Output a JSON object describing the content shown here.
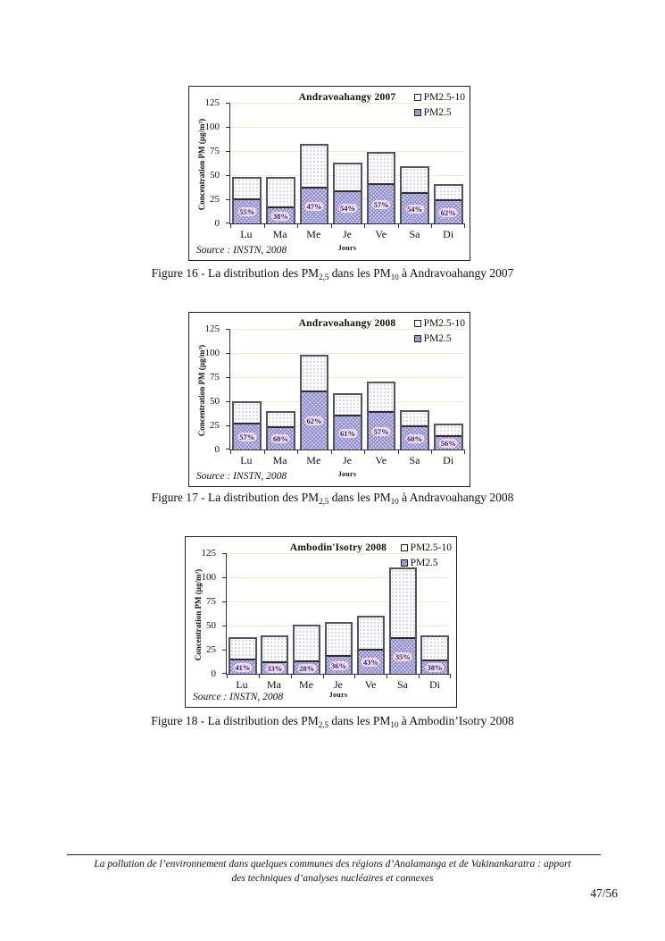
{
  "page": {
    "footer_line1": "La pollution de l’environnement dans quelques communes des régions d’Analamanga et de Vakinankaratra : apport",
    "footer_line2": "des techniques d’analyses nucléaires et connexes",
    "page_number": "47/56"
  },
  "colors": {
    "pm25_fill": "#c7c6e9",
    "pm25_10_fill": "#ffffff",
    "bar_outline": "#54545c",
    "gridline": "#eeeecf",
    "percent_text": "#2d2d6b",
    "percent_halo": "#f2d9ee"
  },
  "chart_data": [
    {
      "type": "bar",
      "stacked": true,
      "title": "Andravoahangy 2007",
      "categories": [
        "Lu",
        "Ma",
        "Me",
        "Je",
        "Ve",
        "Sa",
        "Di"
      ],
      "series": [
        {
          "name": "PM2.5",
          "values": [
            26,
            18,
            38,
            34,
            42,
            32,
            25
          ]
        },
        {
          "name": "PM2.5-10",
          "values": [
            22,
            30,
            44,
            29,
            32,
            27,
            16
          ]
        }
      ],
      "totals": [
        48,
        48,
        82,
        63,
        74,
        59,
        41
      ],
      "bar_labels": [
        "55%",
        "38%",
        "47%",
        "54%",
        "57%",
        "54%",
        "62%"
      ],
      "xlabel": "Jours",
      "ylabel": "Concentration PM (µg/m³)",
      "ylim": [
        0,
        125
      ],
      "yticks": [
        0,
        25,
        50,
        75,
        100,
        125
      ],
      "legend": [
        "PM2.5-10",
        "PM2.5"
      ],
      "legend_position": "top-right",
      "grid": "horizontal",
      "source_note": "Source : INSTN, 2008",
      "caption": {
        "prefix": "Figure 16 - La distribution des PM",
        "sub_a": "2,5",
        "mid": " dans les PM",
        "sub_b": "10",
        "suffix": " à Andravoahangy 2007"
      }
    },
    {
      "type": "bar",
      "stacked": true,
      "title": "Andravoahangy 2008",
      "categories": [
        "Lu",
        "Ma",
        "Me",
        "Je",
        "Ve",
        "Sa",
        "Di"
      ],
      "series": [
        {
          "name": "PM2.5",
          "values": [
            28,
            24,
            61,
            36,
            40,
            25,
            15
          ]
        },
        {
          "name": "PM2.5-10",
          "values": [
            22,
            16,
            37,
            22,
            30,
            16,
            12
          ]
        }
      ],
      "totals": [
        50,
        40,
        98,
        58,
        70,
        41,
        27
      ],
      "bar_labels": [
        "57%",
        "60%",
        "62%",
        "61%",
        "57%",
        "60%",
        "56%"
      ],
      "xlabel": "Jours",
      "ylabel": "Concentration PM (µg/m³)",
      "ylim": [
        0,
        125
      ],
      "yticks": [
        0,
        25,
        50,
        75,
        100,
        125
      ],
      "legend": [
        "PM2.5-10",
        "PM2.5"
      ],
      "legend_position": "top-right",
      "grid": "horizontal",
      "source_note": "Source : INSTN, 2008",
      "caption": {
        "prefix": "Figure 17 - La distribution des PM",
        "sub_a": "2,5",
        "mid": " dans les PM",
        "sub_b": "10",
        "suffix": " à Andravoahangy 2008"
      }
    },
    {
      "type": "bar",
      "stacked": true,
      "title": "Ambodin'Isotry 2008",
      "categories": [
        "Lu",
        "Ma",
        "Me",
        "Je",
        "Ve",
        "Sa",
        "Di"
      ],
      "series": [
        {
          "name": "PM2.5",
          "values": [
            16,
            13,
            14,
            19,
            26,
            38,
            15
          ]
        },
        {
          "name": "PM2.5-10",
          "values": [
            22,
            27,
            37,
            35,
            34,
            72,
            25
          ]
        }
      ],
      "totals": [
        38,
        40,
        51,
        54,
        60,
        110,
        40
      ],
      "bar_labels": [
        "41%",
        "33%",
        "28%",
        "36%",
        "43%",
        "35%",
        "38%"
      ],
      "xlabel": "Jours",
      "ylabel": "Concentration PM (µg/m³)",
      "ylim": [
        0,
        125
      ],
      "yticks": [
        0,
        25,
        50,
        75,
        100,
        125
      ],
      "legend": [
        "PM2.5-10",
        "PM2.5"
      ],
      "legend_position": "top-right",
      "grid": "horizontal",
      "source_note": "Source : INSTN, 2008",
      "caption": {
        "prefix": "Figure 18 - La distribution des PM",
        "sub_a": "2,5",
        "mid": " dans les PM",
        "sub_b": "10",
        "suffix": " à Ambodin’Isotry 2008"
      }
    }
  ]
}
